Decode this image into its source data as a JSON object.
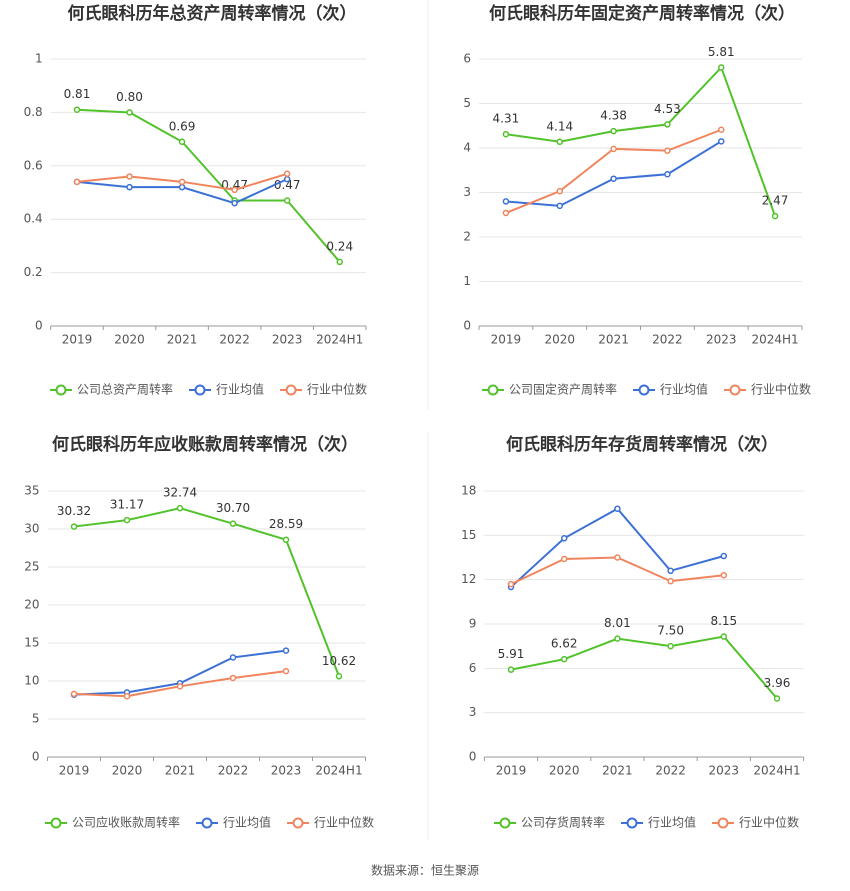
{
  "chart_data": [
    {
      "type": "line",
      "title": "何氏眼科历年总资产周转率情况（次）",
      "categories": [
        "2019",
        "2020",
        "2021",
        "2022",
        "2023",
        "2024H1"
      ],
      "ylim": [
        0,
        1
      ],
      "yticks": [
        0,
        0.2,
        0.4,
        0.6,
        0.8,
        1
      ],
      "grid": true,
      "series": [
        {
          "name": "公司总资产周转率",
          "color": "#52c22b",
          "values": [
            0.81,
            0.8,
            0.69,
            0.47,
            0.47,
            0.24
          ],
          "value_labels": [
            "0.81",
            "0.80",
            "0.69",
            "0.47",
            "0.47",
            "0.24"
          ]
        },
        {
          "name": "行业均值",
          "color": "#3b70d6",
          "values": [
            0.54,
            0.52,
            0.52,
            0.46,
            0.55,
            null
          ]
        },
        {
          "name": "行业中位数",
          "color": "#f0855d",
          "values": [
            0.54,
            0.56,
            0.54,
            0.51,
            0.57,
            null
          ]
        }
      ]
    },
    {
      "type": "line",
      "title": "何氏眼科历年固定资产周转率情况（次）",
      "categories": [
        "2019",
        "2020",
        "2021",
        "2022",
        "2023",
        "2024H1"
      ],
      "ylim": [
        0,
        6
      ],
      "yticks": [
        0,
        1,
        2,
        3,
        4,
        5,
        6
      ],
      "grid": true,
      "series": [
        {
          "name": "公司固定资产周转率",
          "color": "#52c22b",
          "values": [
            4.31,
            4.14,
            4.38,
            4.53,
            5.81,
            2.47
          ],
          "value_labels": [
            "4.31",
            "4.14",
            "4.38",
            "4.53",
            "5.81",
            "2.47"
          ]
        },
        {
          "name": "行业均值",
          "color": "#3b70d6",
          "values": [
            2.8,
            2.7,
            3.31,
            3.41,
            4.15,
            null
          ]
        },
        {
          "name": "行业中位数",
          "color": "#f0855d",
          "values": [
            2.54,
            3.03,
            3.98,
            3.94,
            4.41,
            null
          ]
        }
      ]
    },
    {
      "type": "line",
      "title": "何氏眼科历年应收账款周转率情况（次）",
      "categories": [
        "2019",
        "2020",
        "2021",
        "2022",
        "2023",
        "2024H1"
      ],
      "ylim": [
        0,
        35
      ],
      "yticks": [
        0,
        5,
        10,
        15,
        20,
        25,
        30,
        35
      ],
      "grid": true,
      "series": [
        {
          "name": "公司应收账款周转率",
          "color": "#52c22b",
          "values": [
            30.32,
            31.17,
            32.74,
            30.7,
            28.59,
            10.62
          ],
          "value_labels": [
            "30.32",
            "31.17",
            "32.74",
            "30.70",
            "28.59",
            "10.62"
          ]
        },
        {
          "name": "行业均值",
          "color": "#3b70d6",
          "values": [
            8.2,
            8.5,
            9.7,
            13.1,
            14.0,
            null
          ]
        },
        {
          "name": "行业中位数",
          "color": "#f0855d",
          "values": [
            8.3,
            8.0,
            9.3,
            10.4,
            11.3,
            null
          ]
        }
      ]
    },
    {
      "type": "line",
      "title": "何氏眼科历年存货周转率情况（次）",
      "categories": [
        "2019",
        "2020",
        "2021",
        "2022",
        "2023",
        "2024H1"
      ],
      "ylim": [
        0,
        18
      ],
      "yticks": [
        0,
        3,
        6,
        9,
        12,
        15,
        18
      ],
      "grid": true,
      "series": [
        {
          "name": "公司存货周转率",
          "color": "#52c22b",
          "values": [
            5.91,
            6.62,
            8.01,
            7.5,
            8.15,
            3.96
          ],
          "value_labels": [
            "5.91",
            "6.62",
            "8.01",
            "7.50",
            "8.15",
            "3.96"
          ]
        },
        {
          "name": "行业均值",
          "color": "#3b70d6",
          "values": [
            11.5,
            14.8,
            16.8,
            12.6,
            13.6,
            null
          ]
        },
        {
          "name": "行业中位数",
          "color": "#f0855d",
          "values": [
            11.7,
            13.4,
            13.5,
            11.9,
            12.3,
            null
          ]
        }
      ]
    }
  ],
  "source": "数据来源：恒生聚源"
}
